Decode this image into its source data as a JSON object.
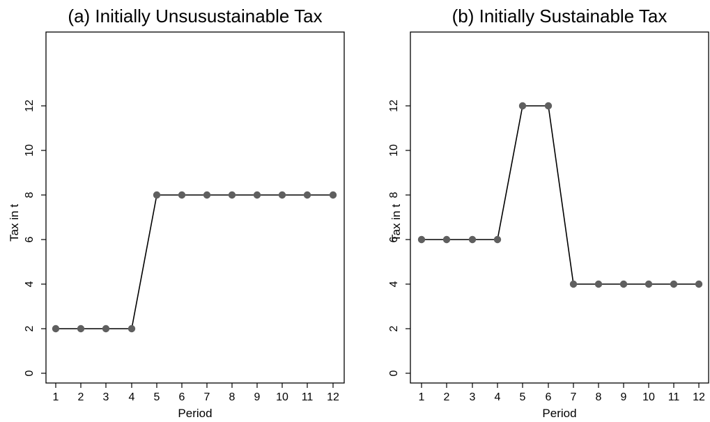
{
  "chart_data": [
    {
      "type": "line",
      "title": "(a) Initially Unsusustainable Tax",
      "xlabel": "Period",
      "ylabel": "Tax in t",
      "xlim": [
        1,
        12
      ],
      "ylim": [
        0,
        14
      ],
      "x_ticks": [
        1,
        2,
        3,
        4,
        5,
        6,
        7,
        8,
        9,
        10,
        11,
        12
      ],
      "y_ticks": [
        0,
        2,
        4,
        6,
        8,
        10,
        12
      ],
      "grid": false,
      "series": [
        {
          "x": [
            1,
            2,
            3,
            4,
            5,
            6,
            7,
            8,
            9,
            10,
            11,
            12
          ],
          "values": [
            2,
            2,
            2,
            2,
            8,
            8,
            8,
            8,
            8,
            8,
            8,
            8
          ]
        }
      ],
      "colors": {
        "line": "#000000",
        "marker": "#5f5f5f"
      }
    },
    {
      "type": "line",
      "title": "(b) Initially Sustainable Tax",
      "xlabel": "Period",
      "ylabel": "Tax in t",
      "xlim": [
        1,
        12
      ],
      "ylim": [
        0,
        14
      ],
      "x_ticks": [
        1,
        2,
        3,
        4,
        5,
        6,
        7,
        8,
        9,
        10,
        11,
        12
      ],
      "y_ticks": [
        0,
        2,
        4,
        6,
        8,
        10,
        12
      ],
      "grid": false,
      "series": [
        {
          "x": [
            1,
            2,
            3,
            4,
            5,
            6,
            7,
            8,
            9,
            10,
            11,
            12
          ],
          "values": [
            6,
            6,
            6,
            6,
            12,
            12,
            4,
            4,
            4,
            4,
            4,
            4
          ]
        }
      ],
      "colors": {
        "line": "#000000",
        "marker": "#5f5f5f"
      }
    }
  ]
}
